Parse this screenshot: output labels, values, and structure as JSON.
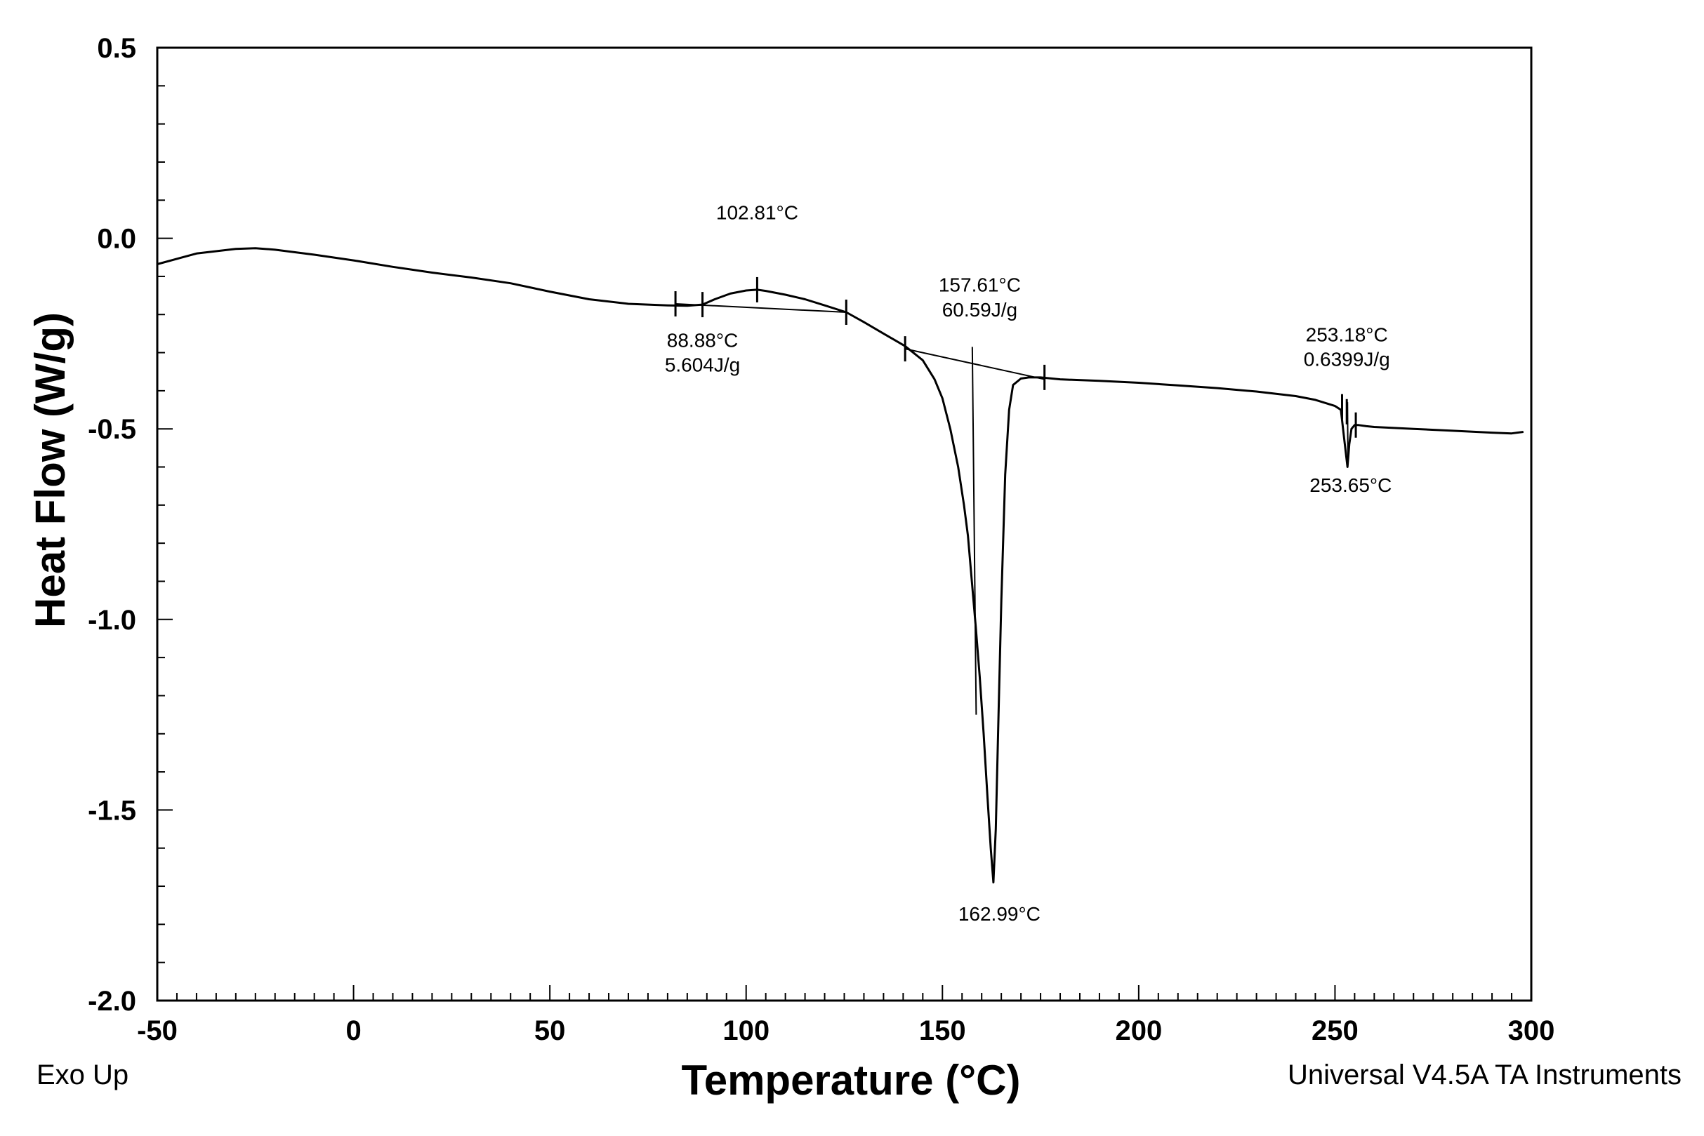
{
  "chart_data": {
    "type": "line",
    "title": "",
    "xlabel": "Temperature (°C)",
    "ylabel": "Heat Flow (W/g)",
    "xlim": [
      -50,
      300
    ],
    "ylim": [
      -2.0,
      0.5
    ],
    "x_ticks": [
      -50,
      0,
      50,
      100,
      150,
      200,
      250,
      300
    ],
    "x_tick_labels": [
      "-50",
      "0",
      "50",
      "100",
      "150",
      "200",
      "250",
      "300"
    ],
    "y_ticks": [
      0.5,
      0.0,
      -0.5,
      -1.0,
      -1.5,
      -2.0
    ],
    "y_tick_labels": [
      "0.5",
      "0.0",
      "-0.5",
      "-1.0",
      "-1.5",
      "-2.0"
    ],
    "grid": false,
    "series": [
      {
        "name": "DSC heat flow",
        "x": [
          -50,
          -40,
          -30,
          -25,
          -20,
          -10,
          0,
          10,
          20,
          30,
          40,
          50,
          60,
          70,
          80,
          85,
          88.88,
          92,
          96,
          100,
          102.81,
          105,
          110,
          115,
          120,
          125.5,
          130,
          135,
          140.5,
          145,
          148,
          150,
          152,
          154,
          155.5,
          156.5,
          157.5,
          158.5,
          159.5,
          160.5,
          161.5,
          162.3,
          162.99,
          163.6,
          164.3,
          165,
          166,
          167,
          168,
          170,
          172,
          175,
          180,
          190,
          200,
          210,
          220,
          230,
          240,
          245,
          250,
          251.5,
          252.5,
          253.18,
          253.65,
          254.2,
          255,
          256,
          258,
          260,
          270,
          280,
          290,
          295,
          298
        ],
        "y": [
          -0.068,
          -0.04,
          -0.028,
          -0.026,
          -0.03,
          -0.043,
          -0.058,
          -0.075,
          -0.09,
          -0.103,
          -0.118,
          -0.14,
          -0.16,
          -0.172,
          -0.176,
          -0.177,
          -0.174,
          -0.16,
          -0.145,
          -0.137,
          -0.135,
          -0.138,
          -0.148,
          -0.16,
          -0.176,
          -0.194,
          -0.22,
          -0.25,
          -0.283,
          -0.32,
          -0.37,
          -0.42,
          -0.5,
          -0.6,
          -0.7,
          -0.78,
          -0.9,
          -1.02,
          -1.15,
          -1.3,
          -1.47,
          -1.6,
          -1.69,
          -1.55,
          -1.25,
          -0.95,
          -0.62,
          -0.45,
          -0.385,
          -0.368,
          -0.365,
          -0.365,
          -0.37,
          -0.374,
          -0.379,
          -0.386,
          -0.393,
          -0.402,
          -0.414,
          -0.424,
          -0.44,
          -0.45,
          -0.54,
          -0.6,
          -0.54,
          -0.5,
          -0.49,
          -0.49,
          -0.493,
          -0.495,
          -0.5,
          -0.505,
          -0.51,
          -0.512,
          -0.508
        ]
      }
    ],
    "baselines": [
      {
        "x": [
          82,
          125.5
        ],
        "y": [
          -0.172,
          -0.194
        ]
      },
      {
        "x": [
          140.5,
          176
        ],
        "y": [
          -0.29,
          -0.37
        ]
      }
    ],
    "marker_ticks": [
      {
        "x": 82,
        "y": -0.172
      },
      {
        "x": 88.88,
        "y": -0.174
      },
      {
        "x": 102.81,
        "y": -0.135
      },
      {
        "x": 125.5,
        "y": -0.194
      },
      {
        "x": 140.5,
        "y": -0.29
      },
      {
        "x": 176,
        "y": -0.365
      },
      {
        "x": 251.8,
        "y": -0.442
      },
      {
        "x": 253.0,
        "y": -0.455
      },
      {
        "x": 255.3,
        "y": -0.49
      }
    ],
    "onset_lines": [
      {
        "x": [
          157.61,
          158.6
        ],
        "y": [
          -0.285,
          -1.25
        ]
      },
      {
        "x": [
          253.18,
          253.3
        ],
        "y": [
          -0.43,
          -0.58
        ]
      }
    ],
    "annotations": [
      {
        "text": "102.81°C",
        "x": 102.81,
        "y": 0.05
      },
      {
        "text": "88.88°C",
        "x": 88.88,
        "y": -0.285
      },
      {
        "text": "5.604J/g",
        "x": 88.88,
        "y": -0.35
      },
      {
        "text": "157.61°C",
        "x": 159.5,
        "y": -0.14
      },
      {
        "text": "60.59J/g",
        "x": 159.5,
        "y": -0.205
      },
      {
        "text": "162.99°C",
        "x": 164.5,
        "y": -1.79
      },
      {
        "text": "253.18°C",
        "x": 253.0,
        "y": -0.27
      },
      {
        "text": "0.6399J/g",
        "x": 253.0,
        "y": -0.335
      },
      {
        "text": "253.65°C",
        "x": 254.0,
        "y": -0.665
      }
    ],
    "footer_left": "Exo Up",
    "footer_right": "Universal V4.5A TA Instruments"
  }
}
